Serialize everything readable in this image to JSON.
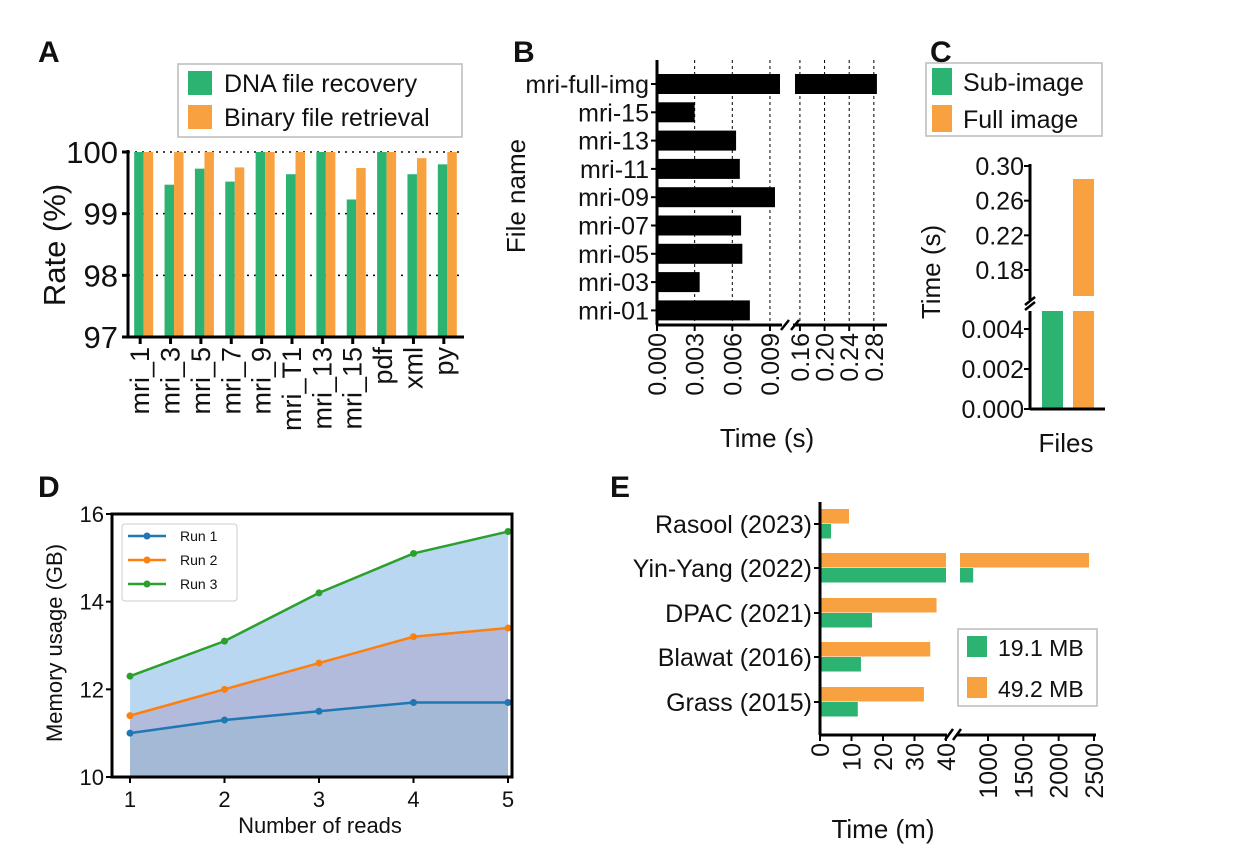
{
  "colors": {
    "green": "#2db371",
    "orange": "#f8a140",
    "black": "#000000",
    "run1": "#1f77b4",
    "run2": "#ff7f0e",
    "run3": "#2ca02c"
  },
  "chart_data": [
    {
      "panel": "A",
      "type": "bar",
      "ylabel": "Rate (%)",
      "ylim": [
        97,
        100
      ],
      "yticks": [
        "97",
        "98",
        "99",
        "100"
      ],
      "grid": "horizontal dotted",
      "legend_position": "top",
      "categories": [
        "mri_1",
        "mri_3",
        "mri_5",
        "mri_7",
        "mri_9",
        "mri_T1",
        "mri_13",
        "mri_15",
        "pdf",
        "xml",
        "py"
      ],
      "series": [
        {
          "name": "DNA file recovery",
          "color": "#2db371",
          "values": [
            100,
            99.47,
            99.73,
            99.52,
            100,
            99.64,
            100,
            99.23,
            100,
            99.64,
            99.8
          ]
        },
        {
          "name": "Binary file retrieval",
          "color": "#f8a140",
          "values": [
            100,
            100,
            100,
            99.75,
            100,
            100,
            100,
            99.74,
            100,
            99.9,
            100
          ]
        }
      ]
    },
    {
      "panel": "B",
      "type": "bar",
      "orientation": "horizontal",
      "xlabel": "Time (s)",
      "ylabel": "File name",
      "axis_break": true,
      "xlim_segments": [
        [
          0,
          0.0098
        ],
        [
          0.152,
          0.29
        ]
      ],
      "xticks_left": [
        "0.000",
        "0.003",
        "0.006",
        "0.009"
      ],
      "xticks_right": [
        "0.16",
        "0.20",
        "0.24",
        "0.28"
      ],
      "grid": "vertical dotted",
      "categories": [
        "mri-full-img",
        "mri-15",
        "mri-13",
        "mri-11",
        "mri-09",
        "mri-07",
        "mri-05",
        "mri-03",
        "mri-01"
      ],
      "values": [
        0.285,
        0.003,
        0.0063,
        0.0066,
        0.0094,
        0.0067,
        0.0068,
        0.0034,
        0.0074
      ]
    },
    {
      "panel": "C",
      "type": "bar",
      "xlabel": "Files",
      "ylabel": "Time (s)",
      "axis_break": true,
      "ylim_segments": [
        [
          0,
          0.0049
        ],
        [
          0.15,
          0.3
        ]
      ],
      "yticks_lower": [
        "0.000",
        "0.002",
        "0.004"
      ],
      "yticks_upper": [
        "0.18",
        "0.22",
        "0.26",
        "0.30"
      ],
      "legend_position": "top",
      "series": [
        {
          "name": "Sub-image",
          "color": "#2db371",
          "value": 0.0049
        },
        {
          "name": "Full image",
          "color": "#f8a140",
          "value": 0.285
        }
      ]
    },
    {
      "panel": "D",
      "type": "area",
      "xlabel": "Number of reads",
      "ylabel": "Memory usage (GB)",
      "ylim": [
        10,
        16
      ],
      "xlim": [
        1,
        5
      ],
      "yticks": [
        "10",
        "12",
        "14",
        "16"
      ],
      "xticks": [
        "1",
        "2",
        "3",
        "4",
        "5"
      ],
      "legend_position": "top-left",
      "x": [
        1,
        2,
        3,
        4,
        5
      ],
      "series": [
        {
          "name": "Run 1",
          "color": "#1f77b4",
          "values": [
            11.0,
            11.3,
            11.5,
            11.7,
            11.7
          ]
        },
        {
          "name": "Run 2",
          "color": "#ff7f0e",
          "values": [
            11.4,
            12.0,
            12.6,
            13.2,
            13.4
          ]
        },
        {
          "name": "Run 3",
          "color": "#2ca02c",
          "values": [
            12.3,
            13.1,
            14.2,
            15.1,
            15.6
          ]
        }
      ]
    },
    {
      "panel": "E",
      "type": "bar",
      "orientation": "horizontal",
      "xlabel": "Time (m)",
      "axis_break": true,
      "xlim_segments": [
        [
          0,
          40
        ],
        [
          575,
          2500
        ]
      ],
      "xticks_left": [
        "0",
        "10",
        "20",
        "30",
        "40"
      ],
      "xticks_right": [
        "1000",
        "1500",
        "2000",
        "2500"
      ],
      "legend_position": "right",
      "categories": [
        "Rasool (2023)",
        "Yin-Yang (2022)",
        "DPAC (2021)",
        "Blawat (2016)",
        "Grass (2015)"
      ],
      "series": [
        {
          "name": "19.1 MB",
          "color": "#2db371",
          "values": [
            3.5,
            790,
            16.5,
            13,
            12
          ]
        },
        {
          "name": "49.2 MB",
          "color": "#f8a140",
          "values": [
            9.2,
            2430,
            37,
            35,
            33
          ]
        }
      ]
    }
  ]
}
